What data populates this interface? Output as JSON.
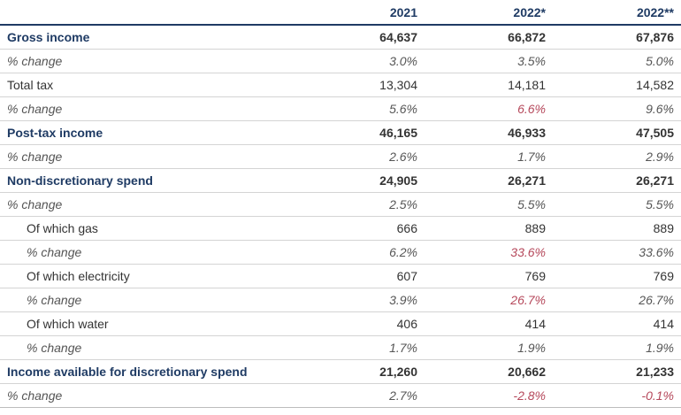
{
  "table": {
    "columns": [
      "",
      "2021",
      "2022*",
      "2022**"
    ],
    "rows": [
      {
        "label": "Gross income",
        "style": "bold",
        "values": [
          "64,637",
          "66,872",
          "67,876"
        ]
      },
      {
        "label": "% change",
        "style": "pct",
        "values": [
          "3.0%",
          "3.5%",
          "5.0%"
        ]
      },
      {
        "label": "Total tax",
        "style": "plain",
        "values": [
          "13,304",
          "14,181",
          "14,582"
        ]
      },
      {
        "label": "% change",
        "style": "pct",
        "values": [
          "5.6%",
          "6.6%",
          "9.6%"
        ],
        "highlight": [
          1
        ]
      },
      {
        "label": "Post-tax income",
        "style": "bold",
        "values": [
          "46,165",
          "46,933",
          "47,505"
        ]
      },
      {
        "label": "% change",
        "style": "pct",
        "values": [
          "2.6%",
          "1.7%",
          "2.9%"
        ]
      },
      {
        "label": "Non-discretionary spend",
        "style": "bold",
        "values": [
          "24,905",
          "26,271",
          "26,271"
        ]
      },
      {
        "label": "% change",
        "style": "pct",
        "values": [
          "2.5%",
          "5.5%",
          "5.5%"
        ]
      },
      {
        "label": "Of which gas",
        "style": "sub",
        "values": [
          "666",
          "889",
          "889"
        ]
      },
      {
        "label": "% change",
        "style": "pct sub",
        "values": [
          "6.2%",
          "33.6%",
          "33.6%"
        ],
        "highlight": [
          1
        ]
      },
      {
        "label": "Of which electricity",
        "style": "sub",
        "values": [
          "607",
          "769",
          "769"
        ]
      },
      {
        "label": "% change",
        "style": "pct sub",
        "values": [
          "3.9%",
          "26.7%",
          "26.7%"
        ],
        "highlight": [
          1
        ]
      },
      {
        "label": "Of which water",
        "style": "sub",
        "values": [
          "406",
          "414",
          "414"
        ]
      },
      {
        "label": "% change",
        "style": "pct sub",
        "values": [
          "1.7%",
          "1.9%",
          "1.9%"
        ]
      },
      {
        "label": "Income available for discretionary spend",
        "style": "bold",
        "values": [
          "21,260",
          "20,662",
          "21,233"
        ]
      },
      {
        "label": "% change",
        "style": "pct last",
        "values": [
          "2.7%",
          "-2.8%",
          "-0.1%"
        ],
        "highlight": [
          1,
          2
        ]
      }
    ]
  },
  "colors": {
    "heading_blue": "#1f3b64",
    "highlight_red": "#b5475a",
    "rule_grey": "#d4d4d4"
  }
}
